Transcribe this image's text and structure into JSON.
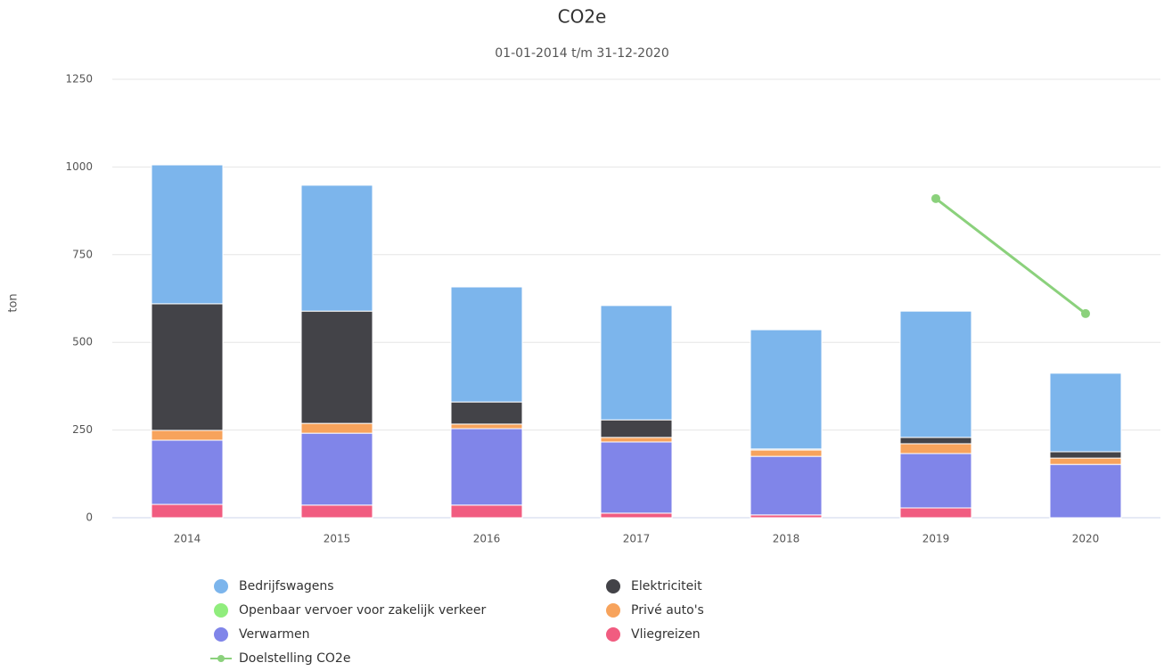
{
  "chart_data": {
    "type": "bar",
    "stacked": true,
    "title": "CO2e",
    "subtitle": "01-01-2014 t/m 31-12-2020",
    "y_label": "ton",
    "categories": [
      "2014",
      "2015",
      "2016",
      "2017",
      "2018",
      "2019",
      "2020"
    ],
    "series": [
      {
        "name": "Bedrijfswagens",
        "color": "#7cb5ec",
        "type": "bar",
        "values": [
          396,
          359,
          328,
          326,
          340,
          360,
          224
        ]
      },
      {
        "name": "Elektriciteit",
        "color": "#434348",
        "type": "bar",
        "values": [
          361,
          320,
          63,
          50,
          3,
          18,
          18
        ]
      },
      {
        "name": "Openbaar vervoer voor zakelijk verkeer",
        "color": "#90ed7d",
        "type": "bar",
        "values": [
          0,
          0,
          0,
          0,
          0,
          0,
          0
        ]
      },
      {
        "name": "Privé auto's",
        "color": "#f7a35c",
        "type": "bar",
        "values": [
          28,
          28,
          13,
          13,
          18,
          28,
          18
        ]
      },
      {
        "name": "Verwarmen",
        "color": "#8085e9",
        "type": "bar",
        "values": [
          183,
          205,
          218,
          203,
          167,
          155,
          152
        ]
      },
      {
        "name": "Vliegreizen",
        "color": "#f15c80",
        "type": "bar",
        "values": [
          38,
          36,
          36,
          13,
          8,
          28,
          0
        ]
      },
      {
        "name": "Doelstelling CO2e",
        "color": "#8bd17c",
        "type": "line",
        "values": [
          null,
          null,
          null,
          null,
          null,
          910,
          582
        ]
      }
    ],
    "ylim": [
      0,
      1250
    ],
    "yticks": [
      0,
      250,
      500,
      750,
      1000,
      1250
    ],
    "grid": true
  }
}
